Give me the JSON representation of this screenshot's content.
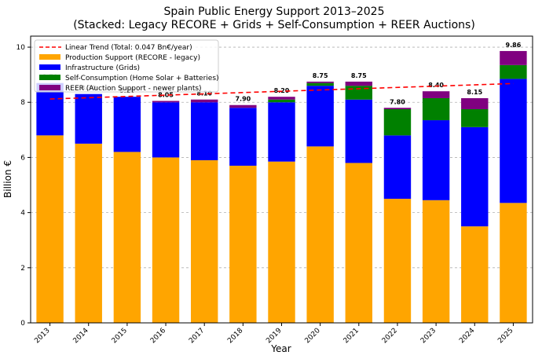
{
  "chart_data": {
    "type": "bar",
    "stacked": true,
    "title": "Spain Public Energy Support 2013–2025",
    "subtitle": "(Stacked: Legacy RECORE + Grids + Self-Consumption + REER Auctions)",
    "xlabel": "Year",
    "ylabel": "Billion €",
    "ylim": [
      0,
      10.4
    ],
    "yticks": [
      "0",
      "2",
      "4",
      "6",
      "8",
      "10"
    ],
    "grid": true,
    "legend_position": "top-left",
    "categories": [
      "2013",
      "2014",
      "2015",
      "2016",
      "2017",
      "2018",
      "2019",
      "2020",
      "2021",
      "2022",
      "2023",
      "2024",
      "2025"
    ],
    "series": [
      {
        "name": "Production Support (RECORE - legacy)",
        "color": "#ffa500",
        "values": [
          6.8,
          6.5,
          6.2,
          6.0,
          5.9,
          5.7,
          5.85,
          6.4,
          5.8,
          4.5,
          4.45,
          3.5,
          4.35
        ]
      },
      {
        "name": "Infrastructure (Grids)",
        "color": "#0000ff",
        "values": [
          1.9,
          1.8,
          2.0,
          2.0,
          2.1,
          2.1,
          2.15,
          2.2,
          2.3,
          2.3,
          2.9,
          3.6,
          4.5
        ]
      },
      {
        "name": "Self-Consumption (Home Solar + Batteries)",
        "color": "#008000",
        "values": [
          0.0,
          0.0,
          0.0,
          0.0,
          0.0,
          0.0,
          0.1,
          0.1,
          0.5,
          0.95,
          0.8,
          0.65,
          0.5
        ]
      },
      {
        "name": "REER (Auction Support - newer plants)",
        "color": "#800080",
        "values": [
          0.0,
          0.0,
          0.0,
          0.05,
          0.1,
          0.1,
          0.1,
          0.05,
          0.15,
          0.05,
          0.25,
          0.4,
          0.51
        ]
      }
    ],
    "totals": [
      "8.70",
      "8.30",
      "8.20",
      "8.05",
      "8.10",
      "7.90",
      "8.20",
      "8.75",
      "8.75",
      "7.80",
      "8.40",
      "8.15",
      "9.86"
    ],
    "trend": {
      "name": "Linear Trend (Total: 0.047 Bn€/year)",
      "color": "#ff0000",
      "start": 8.12,
      "end": 8.68
    }
  }
}
